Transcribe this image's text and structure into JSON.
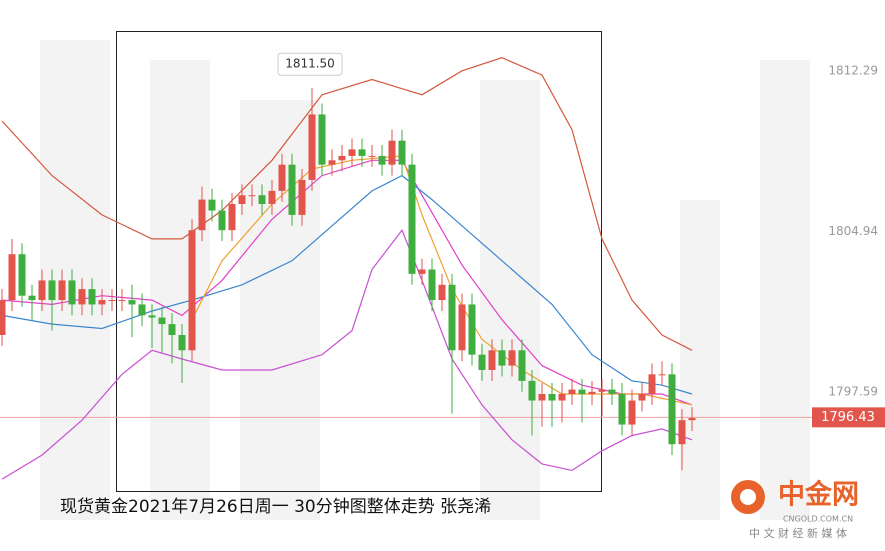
{
  "chart_data": {
    "type": "candlestick",
    "caption": "现货黄金2021年7月26日周一  30分钟图整体走势  张尧浠",
    "xlim": [
      -0.2,
      88.3
    ],
    "ylim": [
      1790.31,
      1815.54
    ],
    "yticks": [
      1812.29,
      1804.94,
      1797.59
    ],
    "grid": false,
    "candles": {
      "up_color": "#e2554c",
      "down_color": "#3fae3f",
      "open": [
        1800.2,
        1801.8,
        1803.9,
        1802.0,
        1801.8,
        1802.7,
        1801.8,
        1802.7,
        1801.6,
        1802.3,
        1801.6,
        1801.8,
        1801.8,
        1801.8,
        1801.6,
        1801.1,
        1801.0,
        1800.7,
        1800.2,
        1799.5,
        1805.0,
        1806.4,
        1805.9,
        1805.0,
        1806.2,
        1806.6,
        1806.6,
        1806.2,
        1806.8,
        1808.0,
        1805.7,
        1807.3,
        1810.3,
        1808.0,
        1808.2,
        1808.4,
        1808.7,
        1808.4,
        1808.4,
        1808.0,
        1809.1,
        1808.0,
        1803.0,
        1803.2,
        1801.8,
        1802.5,
        1799.5,
        1801.6,
        1799.3,
        1798.6,
        1799.5,
        1798.8,
        1799.5,
        1798.1,
        1797.2,
        1797.5,
        1797.2,
        1797.5,
        1797.7,
        1797.5,
        1797.6,
        1797.7,
        1797.5,
        1796.1,
        1797.2,
        1797.5,
        1798.4,
        1798.4,
        1795.2,
        1796.3
      ],
      "high": [
        1802.3,
        1804.6,
        1804.4,
        1802.5,
        1803.2,
        1803.2,
        1803.2,
        1803.2,
        1802.8,
        1802.8,
        1802.3,
        1802.3,
        1802.3,
        1802.5,
        1802.1,
        1801.6,
        1801.5,
        1801.2,
        1800.7,
        1805.5,
        1807.0,
        1806.9,
        1806.4,
        1806.7,
        1807.1,
        1807.1,
        1807.1,
        1807.3,
        1808.5,
        1808.5,
        1807.8,
        1811.5,
        1810.8,
        1808.7,
        1808.9,
        1809.2,
        1809.2,
        1808.9,
        1808.9,
        1809.6,
        1809.6,
        1808.5,
        1803.7,
        1803.7,
        1803.0,
        1803.0,
        1802.1,
        1802.1,
        1799.8,
        1800.0,
        1800.0,
        1800.0,
        1800.0,
        1798.6,
        1798.0,
        1798.0,
        1798.0,
        1798.2,
        1798.2,
        1798.1,
        1798.2,
        1798.2,
        1798.0,
        1797.7,
        1798.0,
        1798.9,
        1799.0,
        1798.9,
        1796.8,
        1796.9
      ],
      "low": [
        1799.7,
        1801.3,
        1801.5,
        1800.9,
        1801.3,
        1800.4,
        1801.3,
        1801.1,
        1801.1,
        1801.1,
        1801.1,
        1801.3,
        1801.3,
        1800.1,
        1800.6,
        1799.6,
        1799.4,
        1798.9,
        1798.0,
        1799.0,
        1804.5,
        1805.4,
        1804.5,
        1804.5,
        1805.7,
        1806.1,
        1805.7,
        1805.7,
        1806.3,
        1805.2,
        1805.2,
        1806.8,
        1807.5,
        1807.5,
        1807.7,
        1807.9,
        1807.9,
        1807.9,
        1807.5,
        1807.5,
        1807.5,
        1802.5,
        1802.5,
        1801.3,
        1801.3,
        1796.6,
        1799.0,
        1798.8,
        1798.1,
        1798.1,
        1798.3,
        1798.3,
        1797.6,
        1795.6,
        1796.0,
        1796.0,
        1796.2,
        1797.0,
        1796.2,
        1797.0,
        1796.5,
        1797.0,
        1795.6,
        1795.6,
        1796.7,
        1797.0,
        1797.9,
        1794.7,
        1794.0,
        1795.8
      ],
      "close": [
        1801.8,
        1803.9,
        1802.0,
        1801.8,
        1802.7,
        1801.8,
        1802.7,
        1801.6,
        1802.3,
        1801.6,
        1801.8,
        1801.8,
        1801.8,
        1801.6,
        1801.1,
        1801.0,
        1800.7,
        1800.2,
        1799.5,
        1805.0,
        1806.4,
        1805.9,
        1805.0,
        1806.2,
        1806.6,
        1806.6,
        1806.2,
        1806.8,
        1808.0,
        1805.7,
        1807.3,
        1810.3,
        1808.0,
        1808.2,
        1808.4,
        1808.7,
        1808.4,
        1808.4,
        1808.0,
        1809.1,
        1808.0,
        1803.0,
        1803.2,
        1801.8,
        1802.5,
        1799.5,
        1801.6,
        1799.3,
        1798.6,
        1799.5,
        1798.8,
        1799.5,
        1798.1,
        1797.2,
        1797.5,
        1797.2,
        1797.5,
        1797.7,
        1797.5,
        1797.6,
        1797.7,
        1797.5,
        1796.1,
        1797.2,
        1797.5,
        1798.4,
        1798.4,
        1795.2,
        1796.3,
        1796.4
      ]
    },
    "overlays": [
      {
        "color": "#d4583e",
        "x": [
          0,
          5,
          10,
          15,
          18,
          22,
          27,
          32,
          37,
          42,
          46,
          50,
          54,
          57,
          60,
          63,
          66,
          69
        ],
        "values": [
          1810.0,
          1807.5,
          1805.7,
          1804.6,
          1804.6,
          1805.9,
          1808.2,
          1811.2,
          1811.9,
          1811.2,
          1812.3,
          1812.9,
          1812.1,
          1809.6,
          1804.6,
          1801.8,
          1800.2,
          1799.5
        ]
      },
      {
        "color": "#c94fd6",
        "x": [
          0,
          4,
          8,
          12,
          15,
          18,
          22,
          27,
          32,
          35,
          37,
          40,
          42,
          45,
          48,
          51,
          54,
          57,
          60,
          63,
          66,
          69
        ],
        "values": [
          1793.6,
          1794.7,
          1796.3,
          1798.4,
          1799.5,
          1799.1,
          1798.6,
          1798.6,
          1799.3,
          1800.4,
          1803.2,
          1805.0,
          1802.7,
          1799.1,
          1797.0,
          1795.4,
          1794.3,
          1794.0,
          1794.9,
          1795.6,
          1795.9,
          1795.4
        ]
      },
      {
        "color": "#e040c8",
        "x": [
          0,
          5,
          10,
          15,
          18,
          22,
          27,
          32,
          37,
          40,
          42,
          46,
          50,
          54,
          58,
          62,
          66,
          69
        ],
        "values": [
          1801.8,
          1801.6,
          1802.0,
          1801.8,
          1801.1,
          1802.7,
          1805.5,
          1807.5,
          1808.2,
          1808.2,
          1806.6,
          1803.4,
          1800.9,
          1798.8,
          1797.9,
          1797.5,
          1797.5,
          1797.0
        ]
      },
      {
        "color": "#3a86d0",
        "x": [
          0,
          5,
          10,
          15,
          19,
          24,
          29,
          33,
          37,
          40,
          43,
          47,
          51,
          55,
          59,
          63,
          66,
          69
        ],
        "values": [
          1801.1,
          1800.7,
          1800.5,
          1801.3,
          1801.8,
          1802.5,
          1803.6,
          1805.2,
          1806.8,
          1807.5,
          1806.4,
          1804.8,
          1803.2,
          1801.6,
          1799.3,
          1798.1,
          1797.9,
          1797.5
        ]
      },
      {
        "color": "#f0a030",
        "x": [
          19,
          22,
          27,
          31,
          35,
          40,
          42,
          45,
          48,
          52,
          56,
          60,
          64,
          67,
          69
        ],
        "values": [
          1800.9,
          1803.6,
          1806.2,
          1807.8,
          1808.2,
          1808.4,
          1805.7,
          1802.3,
          1800.0,
          1798.6,
          1797.5,
          1797.5,
          1797.5,
          1797.2,
          1797.0
        ]
      }
    ],
    "peak": {
      "index": 31,
      "value": 1811.5,
      "label": "1811.50"
    },
    "current_price": {
      "value": 1796.43,
      "label": "1796.43"
    },
    "logo": {
      "name": "中金网",
      "domain": "CNGOLD.COM.CN",
      "slogan": "中 文 财 经 新 媒 体"
    }
  }
}
